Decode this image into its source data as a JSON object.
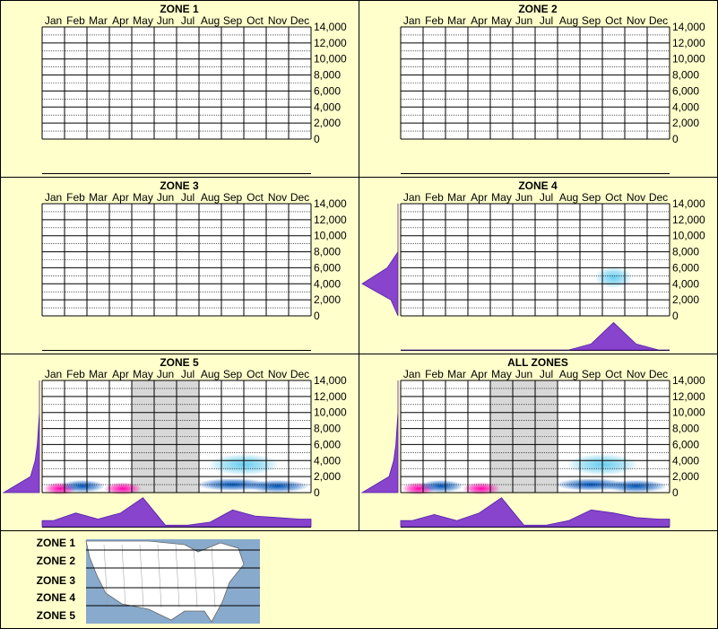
{
  "colors": {
    "background": "#ffffcc",
    "border": "#000000",
    "gridline": "#000000",
    "distribution": "#8844cc",
    "density_low": "#66ccee",
    "density_mid": "#0055bb",
    "density_high": "#ff00aa",
    "shaded_months": "#d8d8d8"
  },
  "months": [
    "Jan",
    "Feb",
    "Mar",
    "Apr",
    "May",
    "Jun",
    "Jul",
    "Aug",
    "Sep",
    "Oct",
    "Nov",
    "Dec"
  ],
  "y_ticks": [
    "14,000",
    "12,000",
    "10,000",
    "8,000",
    "6,000",
    "4,000",
    "2,000",
    "0"
  ],
  "legend": {
    "labels": [
      "ZONE 1",
      "ZONE 2",
      "ZONE 3",
      "ZONE 4",
      "ZONE 5"
    ],
    "map_icon": "north-america-map-icon"
  },
  "chart_data": [
    {
      "type": "heatmap",
      "title": "ZONE 1",
      "x": [
        "Jan",
        "Feb",
        "Mar",
        "Apr",
        "May",
        "Jun",
        "Jul",
        "Aug",
        "Sep",
        "Oct",
        "Nov",
        "Dec"
      ],
      "ylim": [
        0,
        14000
      ],
      "grid": true,
      "shaded_months": [],
      "density_points": [],
      "month_distribution": [],
      "elevation_distribution": []
    },
    {
      "type": "heatmap",
      "title": "ZONE 2",
      "x": [
        "Jan",
        "Feb",
        "Mar",
        "Apr",
        "May",
        "Jun",
        "Jul",
        "Aug",
        "Sep",
        "Oct",
        "Nov",
        "Dec"
      ],
      "ylim": [
        0,
        14000
      ],
      "grid": true,
      "shaded_months": [],
      "density_points": [],
      "month_distribution": [],
      "elevation_distribution": []
    },
    {
      "type": "heatmap",
      "title": "ZONE 3",
      "x": [
        "Jan",
        "Feb",
        "Mar",
        "Apr",
        "May",
        "Jun",
        "Jul",
        "Aug",
        "Sep",
        "Oct",
        "Nov",
        "Dec"
      ],
      "ylim": [
        0,
        14000
      ],
      "grid": true,
      "shaded_months": [],
      "density_points": [],
      "month_distribution": [],
      "elevation_distribution": []
    },
    {
      "type": "heatmap",
      "title": "ZONE 4",
      "x": [
        "Jan",
        "Feb",
        "Mar",
        "Apr",
        "May",
        "Jun",
        "Jul",
        "Aug",
        "Sep",
        "Oct",
        "Nov",
        "Dec"
      ],
      "ylim": [
        0,
        14000
      ],
      "grid": true,
      "shaded_months": [],
      "density_points": [
        {
          "month": 9.5,
          "elevation": 4800,
          "level": "low",
          "spread": 0.45
        }
      ],
      "month_distribution": [
        0,
        0,
        0,
        0,
        0,
        0,
        0,
        0,
        0.2,
        0.9,
        0.2,
        0
      ],
      "elevation_distribution": [
        0,
        0.2,
        1.0,
        0.3,
        0,
        0,
        0,
        0
      ]
    },
    {
      "type": "heatmap",
      "title": "ZONE 5",
      "x": [
        "Jan",
        "Feb",
        "Mar",
        "Apr",
        "May",
        "Jun",
        "Jul",
        "Aug",
        "Sep",
        "Oct",
        "Nov",
        "Dec"
      ],
      "ylim": [
        0,
        14000
      ],
      "grid": true,
      "shaded_months": [
        4,
        5,
        6
      ],
      "density_points": [
        {
          "month": 0.8,
          "elevation": 500,
          "level": "high",
          "spread": 0.35
        },
        {
          "month": 3.6,
          "elevation": 500,
          "level": "high",
          "spread": 0.45
        },
        {
          "month": 1.8,
          "elevation": 800,
          "level": "mid",
          "spread": 0.6
        },
        {
          "month": 8.5,
          "elevation": 1000,
          "level": "mid",
          "spread": 1.2
        },
        {
          "month": 10.5,
          "elevation": 800,
          "level": "mid",
          "spread": 1.0
        },
        {
          "month": 9.0,
          "elevation": 3500,
          "level": "low",
          "spread": 1.2
        }
      ],
      "month_distribution": [
        0.2,
        0.45,
        0.25,
        0.45,
        0.95,
        0.05,
        0.05,
        0.15,
        0.55,
        0.35,
        0.3,
        0.25
      ],
      "elevation_distribution": [
        1.0,
        0.25,
        0.12,
        0.06,
        0.03,
        0,
        0,
        0
      ]
    },
    {
      "type": "heatmap",
      "title": "ALL ZONES",
      "x": [
        "Jan",
        "Feb",
        "Mar",
        "Apr",
        "May",
        "Jun",
        "Jul",
        "Aug",
        "Sep",
        "Oct",
        "Nov",
        "Dec"
      ],
      "ylim": [
        0,
        14000
      ],
      "grid": true,
      "shaded_months": [
        4,
        5,
        6
      ],
      "density_points": [
        {
          "month": 0.8,
          "elevation": 500,
          "level": "high",
          "spread": 0.35
        },
        {
          "month": 3.6,
          "elevation": 500,
          "level": "high",
          "spread": 0.45
        },
        {
          "month": 1.8,
          "elevation": 800,
          "level": "mid",
          "spread": 0.6
        },
        {
          "month": 8.5,
          "elevation": 1000,
          "level": "mid",
          "spread": 1.2
        },
        {
          "month": 10.5,
          "elevation": 800,
          "level": "mid",
          "spread": 1.0
        },
        {
          "month": 9.0,
          "elevation": 3500,
          "level": "low",
          "spread": 1.2
        }
      ],
      "month_distribution": [
        0.2,
        0.4,
        0.2,
        0.45,
        0.95,
        0.05,
        0.05,
        0.2,
        0.55,
        0.45,
        0.3,
        0.25
      ],
      "elevation_distribution": [
        1.0,
        0.25,
        0.12,
        0.06,
        0.03,
        0,
        0,
        0
      ]
    }
  ]
}
